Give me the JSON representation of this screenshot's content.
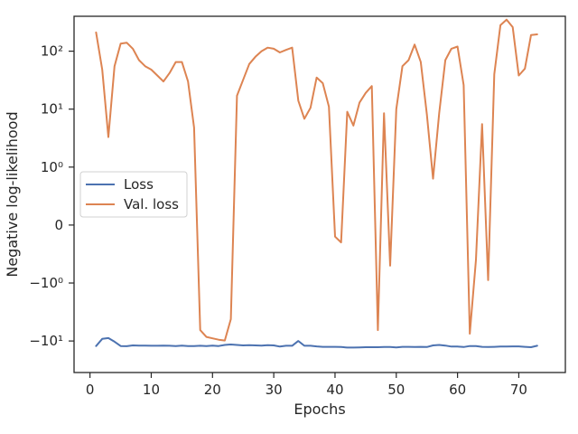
{
  "chart_data": {
    "type": "line",
    "title": "",
    "xlabel": "Epochs",
    "ylabel": "Negative log-likelihood",
    "y_scale": "symlog",
    "linthresh": 1,
    "xlim": [
      -2.6,
      77.6
    ],
    "ylim": [
      -35,
      400
    ],
    "x_ticks": [
      0,
      10,
      20,
      30,
      40,
      50,
      60,
      70
    ],
    "x_tick_labels": [
      "0",
      "10",
      "20",
      "30",
      "40",
      "50",
      "60",
      "70"
    ],
    "y_ticks": [
      -10,
      -1,
      0,
      1,
      10,
      100
    ],
    "y_tick_labels": [
      "−10¹",
      "−10⁰",
      "0",
      "10⁰",
      "10¹",
      "10²"
    ],
    "grid": false,
    "legend_position": "center-left",
    "colors": {
      "loss": "#4c72b0",
      "val_loss": "#dd8452",
      "axes": "#262626"
    },
    "series": [
      {
        "name": "Loss",
        "color": "#4c72b0",
        "x": [
          1,
          2,
          3,
          4,
          5,
          6,
          7,
          8,
          9,
          10,
          11,
          12,
          13,
          14,
          15,
          16,
          17,
          18,
          19,
          20,
          21,
          22,
          23,
          24,
          25,
          26,
          27,
          28,
          29,
          30,
          31,
          32,
          33,
          34,
          35,
          36,
          37,
          38,
          39,
          40,
          41,
          42,
          43,
          44,
          45,
          46,
          47,
          48,
          49,
          50,
          51,
          52,
          53,
          54,
          55,
          56,
          57,
          58,
          59,
          60,
          61,
          62,
          63,
          64,
          65,
          66,
          67,
          68,
          69,
          70,
          71,
          72,
          73
        ],
        "y": [
          -12.2,
          -9.2,
          -8.9,
          -10.3,
          -12.2,
          -12.3,
          -11.9,
          -12.0,
          -12.0,
          -12.1,
          -12.1,
          -12.0,
          -12.1,
          -12.2,
          -12.0,
          -12.2,
          -12.2,
          -12.1,
          -12.2,
          -12.0,
          -12.2,
          -11.7,
          -11.5,
          -11.7,
          -11.9,
          -11.8,
          -11.9,
          -12.0,
          -11.8,
          -11.9,
          -12.5,
          -12.1,
          -12.1,
          -10.0,
          -12.1,
          -12.1,
          -12.4,
          -12.6,
          -12.6,
          -12.6,
          -12.7,
          -13.0,
          -13.0,
          -12.9,
          -12.8,
          -12.8,
          -12.8,
          -12.7,
          -12.7,
          -12.9,
          -12.6,
          -12.6,
          -12.7,
          -12.6,
          -12.7,
          -11.9,
          -11.7,
          -12.0,
          -12.5,
          -12.5,
          -12.7,
          -12.2,
          -12.2,
          -12.6,
          -12.7,
          -12.6,
          -12.5,
          -12.5,
          -12.4,
          -12.4,
          -12.6,
          -12.8,
          -12.1
        ]
      },
      {
        "name": "Val. loss",
        "color": "#dd8452",
        "x": [
          1,
          2,
          3,
          4,
          5,
          6,
          7,
          8,
          9,
          10,
          11,
          12,
          13,
          14,
          15,
          16,
          17,
          18,
          19,
          20,
          21,
          22,
          23,
          24,
          25,
          26,
          27,
          28,
          29,
          30,
          31,
          32,
          33,
          34,
          35,
          36,
          37,
          38,
          39,
          40,
          41,
          42,
          43,
          44,
          45,
          46,
          47,
          48,
          49,
          50,
          51,
          52,
          53,
          54,
          55,
          56,
          57,
          58,
          59,
          60,
          61,
          62,
          63,
          64,
          65,
          66,
          67,
          68,
          69,
          70,
          71,
          72,
          73
        ],
        "y": [
          210,
          48,
          3.3,
          55,
          135,
          140,
          110,
          70,
          55,
          48,
          38,
          30,
          42,
          65,
          65,
          30,
          4.8,
          -6.5,
          -8.5,
          -9.0,
          -9.5,
          -9.8,
          -4.2,
          17,
          32,
          60,
          80,
          100,
          115,
          110,
          95,
          105,
          115,
          14,
          6.8,
          10.5,
          35,
          28,
          11,
          -0.2,
          -0.3,
          9,
          5.2,
          13,
          19,
          25,
          -6.5,
          8.5,
          -0.7,
          10,
          55,
          70,
          130,
          65,
          8,
          0.8,
          8.5,
          70,
          110,
          120,
          26,
          -7.5,
          -0.6,
          5.5,
          -0.95,
          40,
          280,
          350,
          260,
          38,
          50,
          190,
          195
        ]
      }
    ]
  }
}
